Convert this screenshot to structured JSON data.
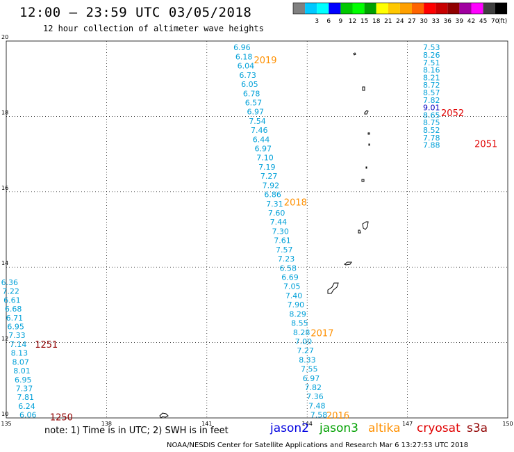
{
  "header": {
    "title": "12:00 – 23:59 UTC 03/05/2018",
    "subtitle": "12 hour collection of altimeter wave heights"
  },
  "legend": {
    "unit": "(ft)",
    "swatches": [
      {
        "color": "#808080",
        "label": ""
      },
      {
        "color": "#00c8ff",
        "label": "3"
      },
      {
        "color": "#00ffff",
        "label": "6"
      },
      {
        "color": "#0000ff",
        "label": "9"
      },
      {
        "color": "#00c800",
        "label": "12"
      },
      {
        "color": "#00ff00",
        "label": "15"
      },
      {
        "color": "#00a000",
        "label": "18"
      },
      {
        "color": "#ffff00",
        "label": "21"
      },
      {
        "color": "#ffc800",
        "label": "24"
      },
      {
        "color": "#ffa000",
        "label": "27"
      },
      {
        "color": "#ff6400",
        "label": "30"
      },
      {
        "color": "#ff0000",
        "label": "33"
      },
      {
        "color": "#c80000",
        "label": "36"
      },
      {
        "color": "#900000",
        "label": "39"
      },
      {
        "color": "#a000a0",
        "label": "42"
      },
      {
        "color": "#ff00ff",
        "label": "45"
      },
      {
        "color": "#404040",
        "label": "70"
      },
      {
        "color": "#000000",
        "label": ""
      }
    ]
  },
  "axes": {
    "lon_min": 135,
    "lon_max": 150,
    "lat_min": 10,
    "lat_max": 20,
    "lon_ticks": [
      "135",
      "138",
      "141",
      "144",
      "147",
      "150"
    ],
    "lat_ticks": [
      "10",
      "12",
      "14",
      "16",
      "18",
      "20"
    ]
  },
  "colors": {
    "swh": "#00a0d8",
    "altika_label": "#ff9000",
    "cryosat_label": "#e00000",
    "s3a_label": "#900000",
    "jason2": "#0000e0",
    "jason3": "#00a000",
    "emphasis_value": "#0000c0"
  },
  "tracks": [
    {
      "id": "track-altika-2019-2018-2017-2016",
      "lon_start": 142.05,
      "lat_start": 19.83,
      "lon_end": 144.35,
      "lat_end": 10.08,
      "values": [
        "6.96",
        "6.18",
        "6.04",
        "6.73",
        "6.05",
        "6.78",
        "6.57",
        "6.97",
        "7.54",
        "7.46",
        "6.44",
        "6.97",
        "7.10",
        "7.19",
        "7.27",
        "7.92",
        "6.86",
        "7.31",
        "7.60",
        "7.44",
        "7.30",
        "7.61",
        "7.57",
        "7.23",
        "6.58",
        "6.69",
        "7.05",
        "7.40",
        "7.90",
        "8.29",
        "8.55",
        "8.28",
        "7.00",
        "7.27",
        "8.33",
        "7.55",
        "6.97",
        "7.82",
        "7.36",
        "7.48",
        "7.58"
      ]
    },
    {
      "id": "track-cryosat-2052-2051",
      "lon_start": 147.72,
      "lat_start": 19.83,
      "lon_end": 147.72,
      "lat_end": 17.24,
      "values": [
        "7.53",
        "8.26",
        "7.51",
        "8.16",
        "8.21",
        "8.72",
        "8.57",
        "7.82",
        "9.01",
        "8.65",
        "8.75",
        "8.52",
        "7.78",
        "7.88"
      ],
      "emphasis_index": 8
    },
    {
      "id": "track-s3a-1251-1250",
      "lon_start": 135.1,
      "lat_start": 13.6,
      "lon_end": 135.65,
      "lat_end": 10.08,
      "values": [
        "6.36",
        "7.22",
        "6.61",
        "6.68",
        "6.71",
        "6.95",
        "7.33",
        "7.14",
        "8.13",
        "8.07",
        "8.01",
        "6.95",
        "7.37",
        "7.81",
        "6.24",
        "6.06"
      ]
    }
  ],
  "time_labels": [
    {
      "text": "2019",
      "lon": 142.75,
      "lat": 19.5,
      "kind": "altika"
    },
    {
      "text": "2018",
      "lon": 143.65,
      "lat": 15.73,
      "kind": "altika"
    },
    {
      "text": "2017",
      "lon": 144.45,
      "lat": 12.26,
      "kind": "altika"
    },
    {
      "text": "2016",
      "lon": 144.92,
      "lat": 10.07,
      "kind": "altika"
    },
    {
      "text": "2052",
      "lon": 148.35,
      "lat": 18.1,
      "kind": "cryosat"
    },
    {
      "text": "2051",
      "lon": 149.35,
      "lat": 17.28,
      "kind": "cryosat"
    },
    {
      "text": "1251",
      "lon": 136.2,
      "lat": 11.96,
      "kind": "s3a"
    },
    {
      "text": "1250",
      "lon": 136.65,
      "lat": 10.03,
      "kind": "s3a"
    }
  ],
  "footer": {
    "note": "note: 1) Time is in UTC; 2) SWH is in feet",
    "satellites": {
      "jason2": "jason2",
      "jason3": "jason3",
      "altika": "altika",
      "cryosat": "cryosat",
      "s3a": "s3a"
    },
    "credit": "NOAA/NESDIS Center for Satellite Applications and Research    Mar  6 13:27:53 UTC 2018"
  }
}
